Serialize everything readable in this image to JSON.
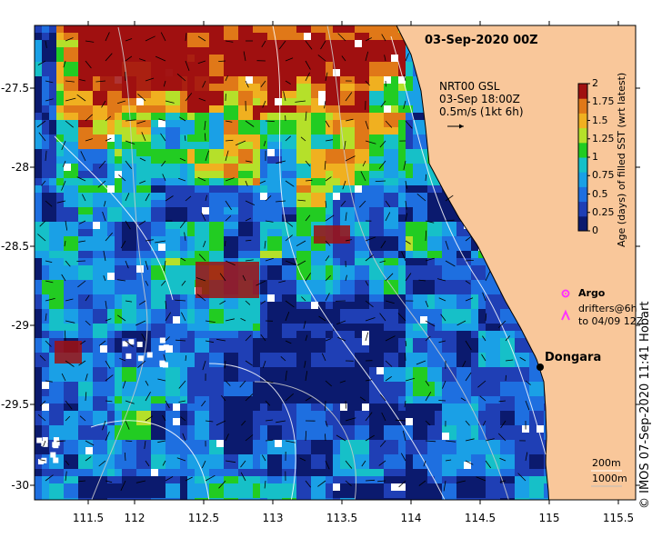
{
  "header": {
    "date_label": "03-Sep-2020 00Z"
  },
  "current_legend": {
    "line1": "NRT00 GSL",
    "line2": "03-Sep 18:00Z",
    "line3": "0.5m/s (1kt 6h)"
  },
  "colorbar": {
    "title": "Age (days) of filled SST (wrt latest)",
    "ticks": [
      "0",
      "0.25",
      "0.5",
      "0.75",
      "1",
      "1.25",
      "1.5",
      "1.75",
      "2"
    ],
    "colors": [
      "#0b1a6e",
      "#1f3fb5",
      "#1e6fe0",
      "#1aa0e6",
      "#16c0c8",
      "#22cc22",
      "#b5e02a",
      "#f0b020",
      "#e07818",
      "#a01010"
    ]
  },
  "argo_legend": {
    "argo_label": "Argo",
    "drifter_line1": "drifters@6h",
    "drifter_line2": "to 04/09 12Z",
    "argo_color": "#ff33ff",
    "drifter_color": "#ff33ff"
  },
  "place": {
    "name": "Dongara"
  },
  "depth_legend": {
    "line1": "200m",
    "line2": "1000m"
  },
  "axes": {
    "x_ticks": [
      "111.5",
      "112",
      "112.5",
      "113",
      "113.5",
      "114",
      "114.5",
      "115",
      "115.5"
    ],
    "y_ticks": [
      "-27.5",
      "-28",
      "-28.5",
      "-29",
      "-29.5",
      "-30"
    ]
  },
  "credit": "© IMOS 07-Sep-2020 11:41 Hobart",
  "land_color": "#f9c79a"
}
